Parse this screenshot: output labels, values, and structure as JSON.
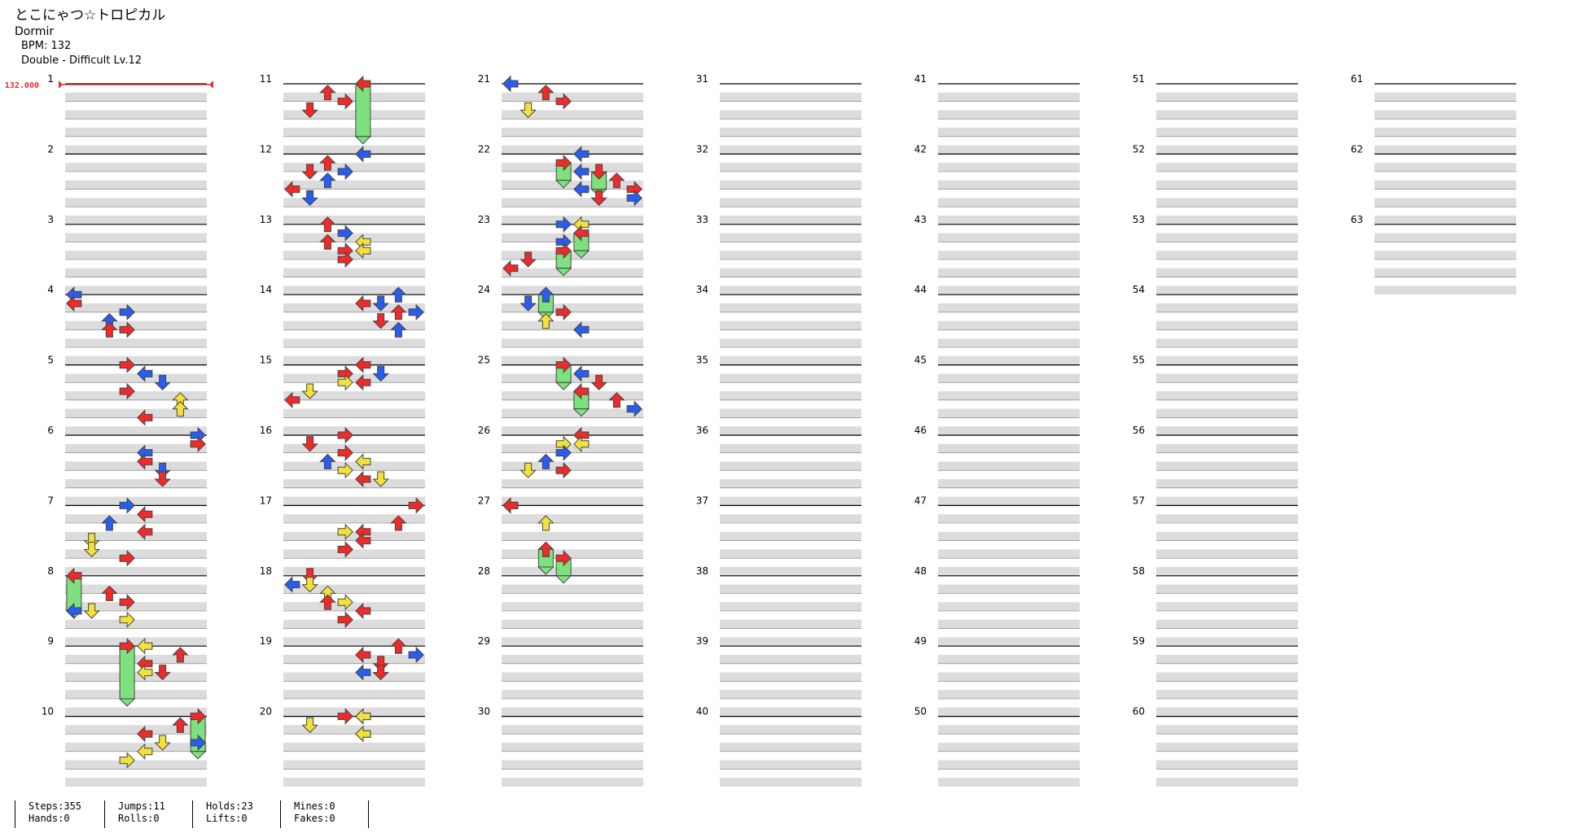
{
  "song": {
    "title": "とこにゃつ☆トロピカル",
    "artist": "Dormir",
    "bpm_text": "BPM: 132",
    "difficulty_text": "Double - Difficult  Lv.12"
  },
  "bpm_marker": {
    "label": "132.000",
    "measure": 1,
    "color": "#e03030"
  },
  "chart": {
    "columns": 7,
    "measures_per_column": 10,
    "total_measures": 63,
    "lanes": 8,
    "measure_numbers": [
      "1",
      "2",
      "3",
      "4",
      "5",
      "6",
      "7",
      "8",
      "9",
      "10",
      "11",
      "12",
      "13",
      "14",
      "15",
      "16",
      "17",
      "18",
      "19",
      "20",
      "21",
      "22",
      "23",
      "24",
      "25",
      "26",
      "27",
      "28",
      "29",
      "30",
      "31",
      "32",
      "33",
      "34",
      "35",
      "36",
      "37",
      "38",
      "39",
      "40",
      "41",
      "42",
      "43",
      "44",
      "45",
      "46",
      "47",
      "48",
      "49",
      "50",
      "51",
      "52",
      "53",
      "54",
      "55",
      "56",
      "57",
      "58",
      "59",
      "60",
      "61",
      "62",
      "63"
    ]
  },
  "colors": {
    "quarter": "#ee2a2a",
    "eighth": "#2a5cee",
    "sixteenth": "#f2e13a",
    "hold_body": "#7fe07f",
    "stripe": "#dcdcdc"
  },
  "notes": [
    {
      "m": 4,
      "b": 0,
      "l": 0,
      "c": "eighth"
    },
    {
      "m": 4,
      "b": 0.25,
      "l": 0,
      "c": "quarter"
    },
    {
      "m": 4,
      "b": 0.5,
      "l": 3,
      "c": "eighth"
    },
    {
      "m": 4,
      "b": 0.75,
      "l": 2,
      "c": "eighth"
    },
    {
      "m": 4,
      "b": 1,
      "l": 2,
      "c": "quarter"
    },
    {
      "m": 4,
      "b": 1,
      "l": 3,
      "c": "quarter"
    },
    {
      "m": 5,
      "b": 0,
      "l": 3,
      "c": "quarter"
    },
    {
      "m": 5,
      "b": 0.25,
      "l": 4,
      "c": "eighth"
    },
    {
      "m": 5,
      "b": 0.5,
      "l": 5,
      "c": "eighth"
    },
    {
      "m": 5,
      "b": 0.75,
      "l": 3,
      "c": "quarter"
    },
    {
      "m": 5,
      "b": 1,
      "l": 6,
      "c": "sixteenth"
    },
    {
      "m": 5,
      "b": 1.25,
      "l": 6,
      "c": "sixteenth"
    },
    {
      "m": 5,
      "b": 1.5,
      "l": 4,
      "c": "quarter"
    },
    {
      "m": 6,
      "b": 0,
      "l": 7,
      "c": "eighth"
    },
    {
      "m": 6,
      "b": 0.25,
      "l": 7,
      "c": "quarter"
    },
    {
      "m": 6,
      "b": 0.5,
      "l": 4,
      "c": "eighth"
    },
    {
      "m": 6,
      "b": 0.75,
      "l": 4,
      "c": "quarter"
    },
    {
      "m": 6,
      "b": 1,
      "l": 5,
      "c": "eighth"
    },
    {
      "m": 6,
      "b": 1.25,
      "l": 5,
      "c": "quarter"
    },
    {
      "m": 7,
      "b": 0,
      "l": 3,
      "c": "eighth"
    },
    {
      "m": 7,
      "b": 0.25,
      "l": 4,
      "c": "quarter"
    },
    {
      "m": 7,
      "b": 0.5,
      "l": 2,
      "c": "eighth"
    },
    {
      "m": 7,
      "b": 0.75,
      "l": 4,
      "c": "quarter"
    },
    {
      "m": 7,
      "b": 1,
      "l": 1,
      "c": "sixteenth"
    },
    {
      "m": 7,
      "b": 1.25,
      "l": 1,
      "c": "sixteenth"
    },
    {
      "m": 7,
      "b": 1.5,
      "l": 3,
      "c": "quarter"
    },
    {
      "m": 8,
      "b": 0,
      "l": 0,
      "c": "quarter",
      "hold": 2
    },
    {
      "m": 8,
      "b": 0.5,
      "l": 2,
      "c": "quarter"
    },
    {
      "m": 8,
      "b": 0.75,
      "l": 3,
      "c": "quarter"
    },
    {
      "m": 8,
      "b": 1,
      "l": 0,
      "c": "eighth"
    },
    {
      "m": 8,
      "b": 1,
      "l": 1,
      "c": "sixteenth"
    },
    {
      "m": 8,
      "b": 1.25,
      "l": 3,
      "c": "sixteenth"
    },
    {
      "m": 9,
      "b": 0,
      "l": 3,
      "c": "quarter",
      "hold": 3
    },
    {
      "m": 9,
      "b": 0,
      "l": 4,
      "c": "sixteenth"
    },
    {
      "m": 9,
      "b": 0.25,
      "l": 6,
      "c": "quarter"
    },
    {
      "m": 9,
      "b": 0.5,
      "l": 4,
      "c": "quarter"
    },
    {
      "m": 9,
      "b": 0.75,
      "l": 4,
      "c": "sixteenth"
    },
    {
      "m": 9,
      "b": 0.75,
      "l": 5,
      "c": "quarter"
    },
    {
      "m": 10,
      "b": 0,
      "l": 7,
      "c": "quarter",
      "hold": 2
    },
    {
      "m": 10,
      "b": 0.25,
      "l": 6,
      "c": "quarter"
    },
    {
      "m": 10,
      "b": 0.5,
      "l": 4,
      "c": "quarter"
    },
    {
      "m": 10,
      "b": 0.75,
      "l": 7,
      "c": "eighth"
    },
    {
      "m": 10,
      "b": 0.75,
      "l": 5,
      "c": "sixteenth"
    },
    {
      "m": 10,
      "b": 1,
      "l": 4,
      "c": "sixteenth"
    },
    {
      "m": 10,
      "b": 1.25,
      "l": 3,
      "c": "sixteenth"
    },
    {
      "m": 11,
      "b": 0,
      "l": 4,
      "c": "quarter",
      "hold": 3
    },
    {
      "m": 11,
      "b": 0.25,
      "l": 2,
      "c": "quarter"
    },
    {
      "m": 11,
      "b": 0.5,
      "l": 3,
      "c": "quarter"
    },
    {
      "m": 11,
      "b": 0.75,
      "l": 1,
      "c": "quarter"
    },
    {
      "m": 12,
      "b": 0,
      "l": 4,
      "c": "eighth"
    },
    {
      "m": 12,
      "b": 0.25,
      "l": 2,
      "c": "quarter"
    },
    {
      "m": 12,
      "b": 0.5,
      "l": 1,
      "c": "quarter"
    },
    {
      "m": 12,
      "b": 0.5,
      "l": 3,
      "c": "eighth"
    },
    {
      "m": 12,
      "b": 0.75,
      "l": 2,
      "c": "eighth"
    },
    {
      "m": 12,
      "b": 1,
      "l": 0,
      "c": "quarter"
    },
    {
      "m": 12,
      "b": 1.25,
      "l": 1,
      "c": "eighth"
    },
    {
      "m": 13,
      "b": 0,
      "l": 2,
      "c": "quarter"
    },
    {
      "m": 13,
      "b": 0.25,
      "l": 3,
      "c": "eighth"
    },
    {
      "m": 13,
      "b": 0.5,
      "l": 2,
      "c": "quarter"
    },
    {
      "m": 13,
      "b": 0.5,
      "l": 4,
      "c": "sixteenth"
    },
    {
      "m": 13,
      "b": 0.75,
      "l": 3,
      "c": "quarter"
    },
    {
      "m": 13,
      "b": 0.75,
      "l": 4,
      "c": "sixteenth"
    },
    {
      "m": 13,
      "b": 1,
      "l": 3,
      "c": "quarter"
    },
    {
      "m": 14,
      "b": 0,
      "l": 6,
      "c": "eighth"
    },
    {
      "m": 14,
      "b": 0.25,
      "l": 4,
      "c": "quarter"
    },
    {
      "m": 14,
      "b": 0.25,
      "l": 5,
      "c": "eighth"
    },
    {
      "m": 14,
      "b": 0.5,
      "l": 6,
      "c": "quarter"
    },
    {
      "m": 14,
      "b": 0.5,
      "l": 7,
      "c": "eighth"
    },
    {
      "m": 14,
      "b": 0.75,
      "l": 5,
      "c": "quarter"
    },
    {
      "m": 14,
      "b": 1,
      "l": 6,
      "c": "eighth"
    },
    {
      "m": 15,
      "b": 0,
      "l": 4,
      "c": "quarter"
    },
    {
      "m": 15,
      "b": 0.25,
      "l": 5,
      "c": "eighth"
    },
    {
      "m": 15,
      "b": 0.25,
      "l": 3,
      "c": "quarter"
    },
    {
      "m": 15,
      "b": 0.5,
      "l": 3,
      "c": "sixteenth"
    },
    {
      "m": 15,
      "b": 0.5,
      "l": 4,
      "c": "quarter"
    },
    {
      "m": 15,
      "b": 0.75,
      "l": 1,
      "c": "sixteenth"
    },
    {
      "m": 15,
      "b": 1,
      "l": 0,
      "c": "quarter"
    },
    {
      "m": 16,
      "b": 0,
      "l": 3,
      "c": "quarter"
    },
    {
      "m": 16,
      "b": 0.25,
      "l": 1,
      "c": "quarter"
    },
    {
      "m": 16,
      "b": 0.5,
      "l": 3,
      "c": "quarter"
    },
    {
      "m": 16,
      "b": 0.75,
      "l": 2,
      "c": "eighth"
    },
    {
      "m": 16,
      "b": 0.75,
      "l": 4,
      "c": "sixteenth"
    },
    {
      "m": 16,
      "b": 1,
      "l": 3,
      "c": "sixteenth"
    },
    {
      "m": 16,
      "b": 1.25,
      "l": 5,
      "c": "sixteenth"
    },
    {
      "m": 16,
      "b": 1.25,
      "l": 4,
      "c": "quarter"
    },
    {
      "m": 17,
      "b": 0,
      "l": 7,
      "c": "quarter"
    },
    {
      "m": 17,
      "b": 0.5,
      "l": 6,
      "c": "quarter"
    },
    {
      "m": 17,
      "b": 0.75,
      "l": 3,
      "c": "sixteenth"
    },
    {
      "m": 17,
      "b": 0.75,
      "l": 4,
      "c": "quarter"
    },
    {
      "m": 17,
      "b": 1,
      "l": 4,
      "c": "quarter"
    },
    {
      "m": 17,
      "b": 1.25,
      "l": 3,
      "c": "quarter"
    },
    {
      "m": 18,
      "b": 0,
      "l": 1,
      "c": "quarter"
    },
    {
      "m": 18,
      "b": 0.25,
      "l": 0,
      "c": "eighth"
    },
    {
      "m": 18,
      "b": 0.25,
      "l": 1,
      "c": "sixteenth"
    },
    {
      "m": 18,
      "b": 0.5,
      "l": 2,
      "c": "sixteenth"
    },
    {
      "m": 18,
      "b": 0.75,
      "l": 2,
      "c": "quarter"
    },
    {
      "m": 18,
      "b": 0.75,
      "l": 3,
      "c": "sixteenth"
    },
    {
      "m": 18,
      "b": 1,
      "l": 4,
      "c": "quarter"
    },
    {
      "m": 18,
      "b": 1.25,
      "l": 3,
      "c": "quarter"
    },
    {
      "m": 19,
      "b": 0,
      "l": 6,
      "c": "quarter"
    },
    {
      "m": 19,
      "b": 0.25,
      "l": 4,
      "c": "quarter"
    },
    {
      "m": 19,
      "b": 0.25,
      "l": 7,
      "c": "eighth"
    },
    {
      "m": 19,
      "b": 0.5,
      "l": 5,
      "c": "quarter"
    },
    {
      "m": 19,
      "b": 0.75,
      "l": 4,
      "c": "eighth"
    },
    {
      "m": 19,
      "b": 0.75,
      "l": 5,
      "c": "quarter"
    },
    {
      "m": 20,
      "b": 0,
      "l": 3,
      "c": "quarter"
    },
    {
      "m": 20,
      "b": 0,
      "l": 4,
      "c": "eighth"
    },
    {
      "m": 20,
      "b": 0,
      "l": 4,
      "c": "sixteenth"
    },
    {
      "m": 20,
      "b": 0.25,
      "l": 1,
      "c": "sixteenth"
    },
    {
      "m": 20,
      "b": 0.5,
      "l": 4,
      "c": "quarter"
    },
    {
      "m": 20,
      "b": 0.5,
      "l": 4,
      "c": "sixteenth"
    },
    {
      "m": 21,
      "b": 0,
      "l": 0,
      "c": "eighth"
    },
    {
      "m": 21,
      "b": 0,
      "l": 0,
      "c": "eighth"
    },
    {
      "m": 21,
      "b": 0.25,
      "l": 2,
      "c": "quarter"
    },
    {
      "m": 21,
      "b": 0.5,
      "l": 3,
      "c": "quarter"
    },
    {
      "m": 21,
      "b": 0.75,
      "l": 1,
      "c": "sixteenth"
    },
    {
      "m": 22,
      "b": 0,
      "l": 4,
      "c": "eighth"
    },
    {
      "m": 22,
      "b": 0.25,
      "l": 3,
      "c": "quarter",
      "hold": 1
    },
    {
      "m": 22,
      "b": 0.5,
      "l": 4,
      "c": "eighth"
    },
    {
      "m": 22,
      "b": 0.5,
      "l": 5,
      "c": "quarter",
      "hold": 1
    },
    {
      "m": 22,
      "b": 0.75,
      "l": 6,
      "c": "quarter"
    },
    {
      "m": 22,
      "b": 1,
      "l": 4,
      "c": "eighth"
    },
    {
      "m": 22,
      "b": 1,
      "l": 7,
      "c": "quarter"
    },
    {
      "m": 22,
      "b": 1.25,
      "l": 7,
      "c": "eighth"
    },
    {
      "m": 22,
      "b": 1.25,
      "l": 5,
      "c": "quarter"
    },
    {
      "m": 23,
      "b": 0,
      "l": 4,
      "c": "sixteenth"
    },
    {
      "m": 23,
      "b": 0,
      "l": 3,
      "c": "eighth"
    },
    {
      "m": 23,
      "b": 0.25,
      "l": 4,
      "c": "quarter",
      "hold": 1
    },
    {
      "m": 23,
      "b": 0.5,
      "l": 3,
      "c": "eighth"
    },
    {
      "m": 23,
      "b": 0.75,
      "l": 3,
      "c": "quarter",
      "hold": 1
    },
    {
      "m": 23,
      "b": 1,
      "l": 1,
      "c": "quarter"
    },
    {
      "m": 23,
      "b": 1.25,
      "l": 0,
      "c": "quarter"
    },
    {
      "m": 24,
      "b": 0,
      "l": 2,
      "c": "eighth",
      "hold": 1
    },
    {
      "m": 24,
      "b": 0.25,
      "l": 1,
      "c": "eighth"
    },
    {
      "m": 24,
      "b": 0.5,
      "l": 3,
      "c": "quarter"
    },
    {
      "m": 24,
      "b": 0.75,
      "l": 2,
      "c": "sixteenth"
    },
    {
      "m": 24,
      "b": 1,
      "l": 4,
      "c": "eighth"
    },
    {
      "m": 25,
      "b": 0,
      "l": 3,
      "c": "quarter",
      "hold": 1
    },
    {
      "m": 25,
      "b": 0.25,
      "l": 4,
      "c": "eighth"
    },
    {
      "m": 25,
      "b": 0.5,
      "l": 5,
      "c": "quarter"
    },
    {
      "m": 25,
      "b": 0.75,
      "l": 4,
      "c": "quarter",
      "hold": 1
    },
    {
      "m": 25,
      "b": 1,
      "l": 6,
      "c": "quarter"
    },
    {
      "m": 25,
      "b": 1.25,
      "l": 7,
      "c": "eighth"
    },
    {
      "m": 26,
      "b": 0,
      "l": 4,
      "c": "quarter"
    },
    {
      "m": 26,
      "b": 0.25,
      "l": 3,
      "c": "sixteenth"
    },
    {
      "m": 26,
      "b": 0.25,
      "l": 4,
      "c": "sixteenth"
    },
    {
      "m": 26,
      "b": 0.5,
      "l": 3,
      "c": "eighth"
    },
    {
      "m": 26,
      "b": 0.75,
      "l": 2,
      "c": "eighth"
    },
    {
      "m": 26,
      "b": 1,
      "l": 1,
      "c": "sixteenth"
    },
    {
      "m": 26,
      "b": 1,
      "l": 3,
      "c": "quarter"
    },
    {
      "m": 27,
      "b": 0,
      "l": 0,
      "c": "sixteenth"
    },
    {
      "m": 27,
      "b": 0,
      "l": 0,
      "c": "quarter"
    },
    {
      "m": 27,
      "b": 0.5,
      "l": 2,
      "c": "sixteenth"
    },
    {
      "m": 27,
      "b": 1.25,
      "l": 2,
      "c": "quarter",
      "hold": 1
    },
    {
      "m": 27,
      "b": 1.5,
      "l": 3,
      "c": "quarter",
      "hold": 1
    }
  ],
  "stats": {
    "steps": "Steps:355",
    "hands": "Hands:0",
    "jumps": "Jumps:11",
    "rolls": "Rolls:0",
    "holds": "Holds:23",
    "lifts": "Lifts:0",
    "mines": "Mines:0",
    "fakes": "Fakes:0"
  }
}
